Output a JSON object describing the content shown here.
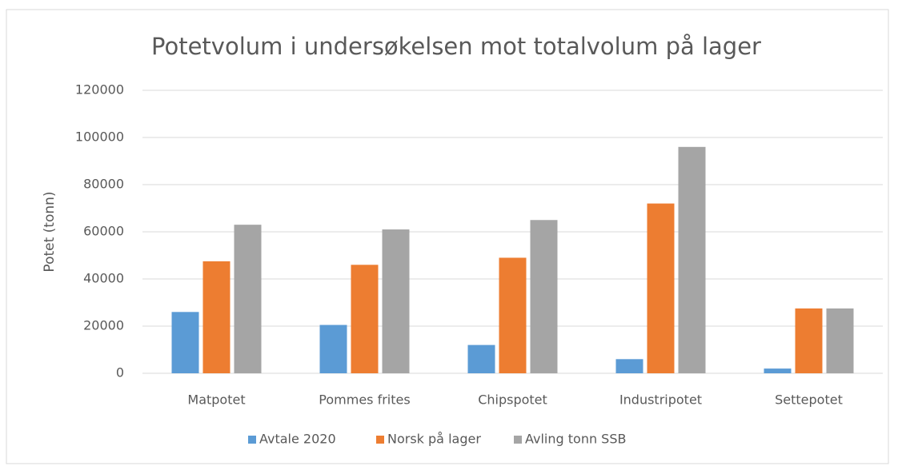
{
  "chart_data": {
    "type": "bar",
    "title": "Potetvolum i undersøkelsen mot totalvolum på lager",
    "y_label": "Potet (tonn)",
    "categories": [
      "Matpotet",
      "Pommes frites",
      "Chipspotet",
      "Industripotet",
      "Settepotet"
    ],
    "series": [
      {
        "name": "Avtale 2020",
        "color": "#5b9bd5",
        "values": [
          26000,
          20500,
          12000,
          6000,
          2000
        ]
      },
      {
        "name": "Norsk på lager",
        "color": "#ed7d31",
        "values": [
          47500,
          46000,
          49000,
          72000,
          27500
        ]
      },
      {
        "name": "Avling tonn SSB",
        "color": "#a5a5a5",
        "values": [
          63000,
          61000,
          65000,
          96000,
          27500
        ]
      }
    ],
    "ylim": [
      0,
      120000
    ],
    "yticks": [
      0,
      20000,
      40000,
      60000,
      80000,
      100000,
      120000
    ],
    "grid": true,
    "legend": "bottom"
  }
}
